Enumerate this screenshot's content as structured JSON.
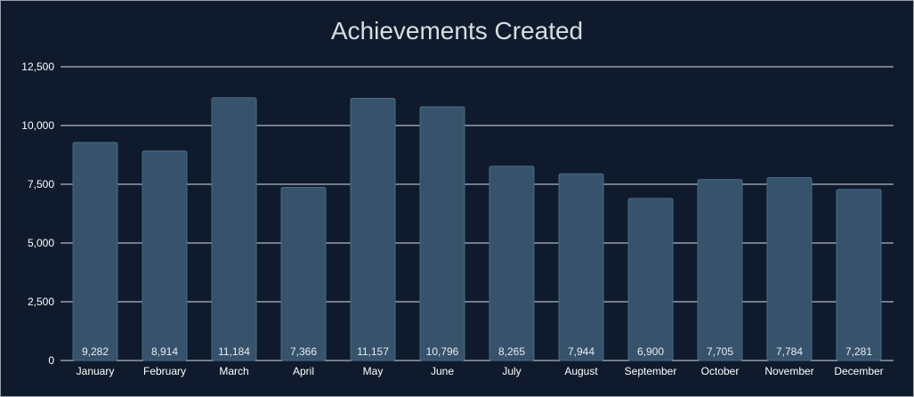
{
  "chart_data": {
    "type": "bar",
    "title": "Achievements Created",
    "xlabel": "",
    "ylabel": "",
    "categories": [
      "January",
      "February",
      "March",
      "April",
      "May",
      "June",
      "July",
      "August",
      "September",
      "October",
      "November",
      "December"
    ],
    "values": [
      9282,
      8914,
      11184,
      7366,
      11157,
      10796,
      8265,
      7944,
      6900,
      7705,
      7784,
      7281
    ],
    "value_labels": [
      "9,282",
      "8,914",
      "11,184",
      "7,366",
      "11,157",
      "10,796",
      "8,265",
      "7,944",
      "6,900",
      "7,705",
      "7,784",
      "7,281"
    ],
    "y_ticks": [
      0,
      2500,
      5000,
      7500,
      10000,
      12500
    ],
    "y_tick_labels": [
      "0",
      "2,500",
      "5,000",
      "7,500",
      "10,000",
      "12,500"
    ],
    "ylim": [
      0,
      12500
    ],
    "grid": true,
    "legend": "none",
    "colors": {
      "background": "#0f1b2d",
      "bar": "#36536b",
      "bar_border": "#4a6a84",
      "grid": "#d8dde2",
      "text": "#ffffff",
      "title": "#d9dde1"
    }
  }
}
